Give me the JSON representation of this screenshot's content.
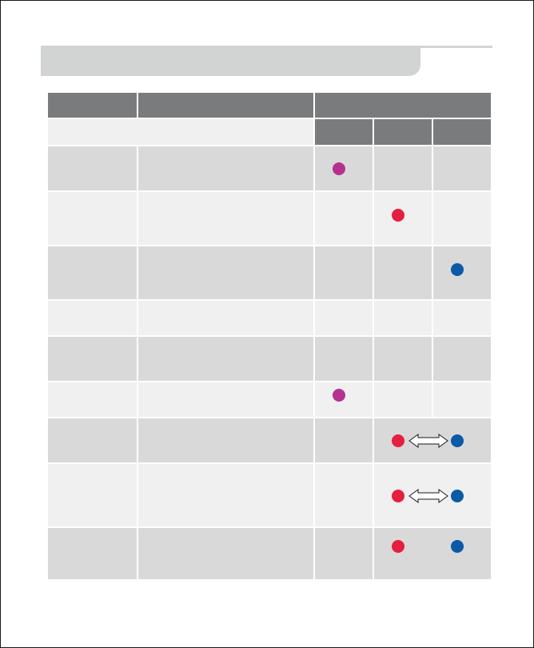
{
  "colors": {
    "header_gray": "#d2d4d3",
    "table_header": "#7a7b7d",
    "row_dark": "#d9d9d9",
    "row_light": "#f0f0f0",
    "purple": "#b5318f",
    "red": "#e61e3f",
    "blue": "#0a5aa8"
  },
  "icons": {
    "purple": "purple-dot-icon",
    "red": "red-dot-icon",
    "blue": "blue-dot-icon",
    "bidirectional": "double-arrow-icon"
  }
}
